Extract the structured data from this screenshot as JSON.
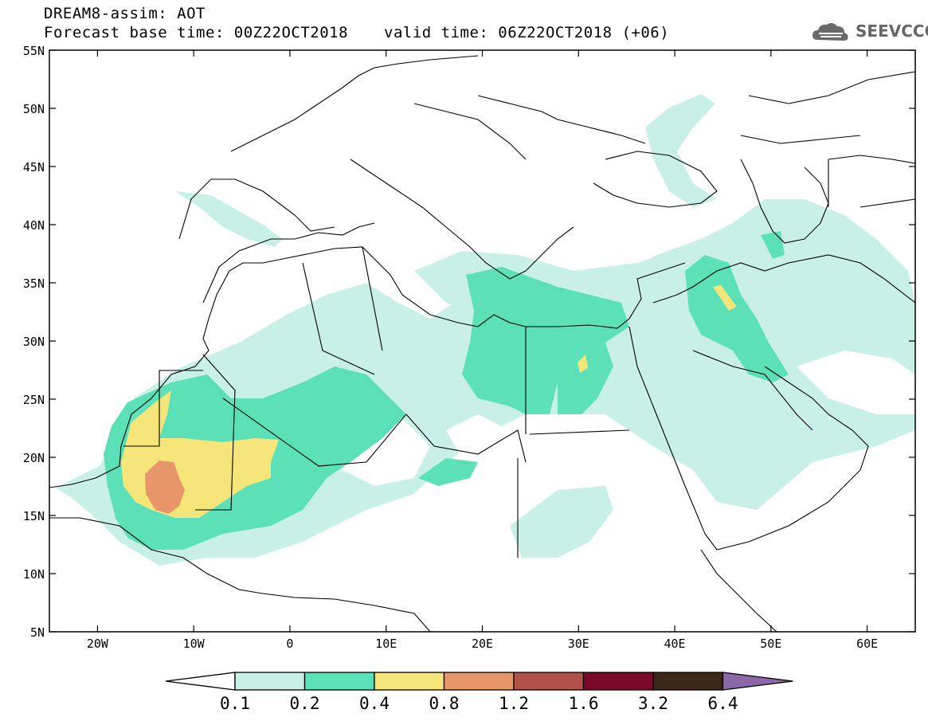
{
  "header": {
    "title": "DREAM8-assim: AOT",
    "base_time": "Forecast base time: 00Z22OCT2018",
    "valid_time": "valid time: 06Z22OCT2018 (+06)"
  },
  "logo": {
    "text": "SEEVCCC",
    "icon": "cloud-icon"
  },
  "map": {
    "lat_ticks": [
      "55N",
      "50N",
      "45N",
      "40N",
      "35N",
      "30N",
      "25N",
      "20N",
      "15N",
      "10N",
      "5N"
    ],
    "lon_ticks": [
      "20W",
      "10W",
      "0",
      "10E",
      "20E",
      "30E",
      "40E",
      "50E",
      "60E"
    ],
    "lat_range": [
      5,
      55
    ],
    "lon_range": [
      -25,
      65
    ]
  },
  "legend": {
    "levels": [
      "0.1",
      "0.2",
      "0.4",
      "0.8",
      "1.2",
      "1.6",
      "3.2",
      "6.4"
    ],
    "colors": [
      "#ffffff",
      "#c8f0e8",
      "#5ce0b8",
      "#f6e67a",
      "#e8956a",
      "#b0524a",
      "#7a0a28",
      "#3c2818",
      "#8c68a8"
    ]
  },
  "colors": {
    "aot_0_1": "#c8f0e8",
    "aot_0_2": "#5ce0b8",
    "aot_0_4": "#f6e67a",
    "aot_0_8": "#e8956a"
  }
}
